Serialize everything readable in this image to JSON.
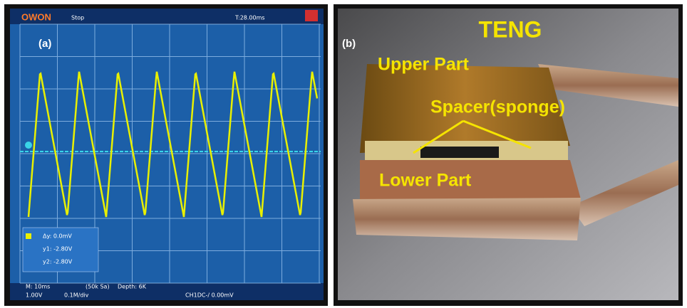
{
  "panel_a": {
    "label": "(a)",
    "brand": "OWON",
    "status": "Stop",
    "timebase": "T:28.00ms",
    "cursor_readout": [
      "Δy: 0.0mV",
      "y1: -2.80V",
      "y2: -2.80V"
    ],
    "footer": [
      "M: 10ms",
      "(50k Sa)",
      "Depth: 6K",
      "1.00V",
      "0.1M/div",
      "CH1DC-/ 0.00mV"
    ]
  },
  "panel_b": {
    "label": "(b)",
    "title": "TENG",
    "annotations": [
      "Upper Part",
      "Spacer(sponge)",
      "Lower Part"
    ]
  }
}
